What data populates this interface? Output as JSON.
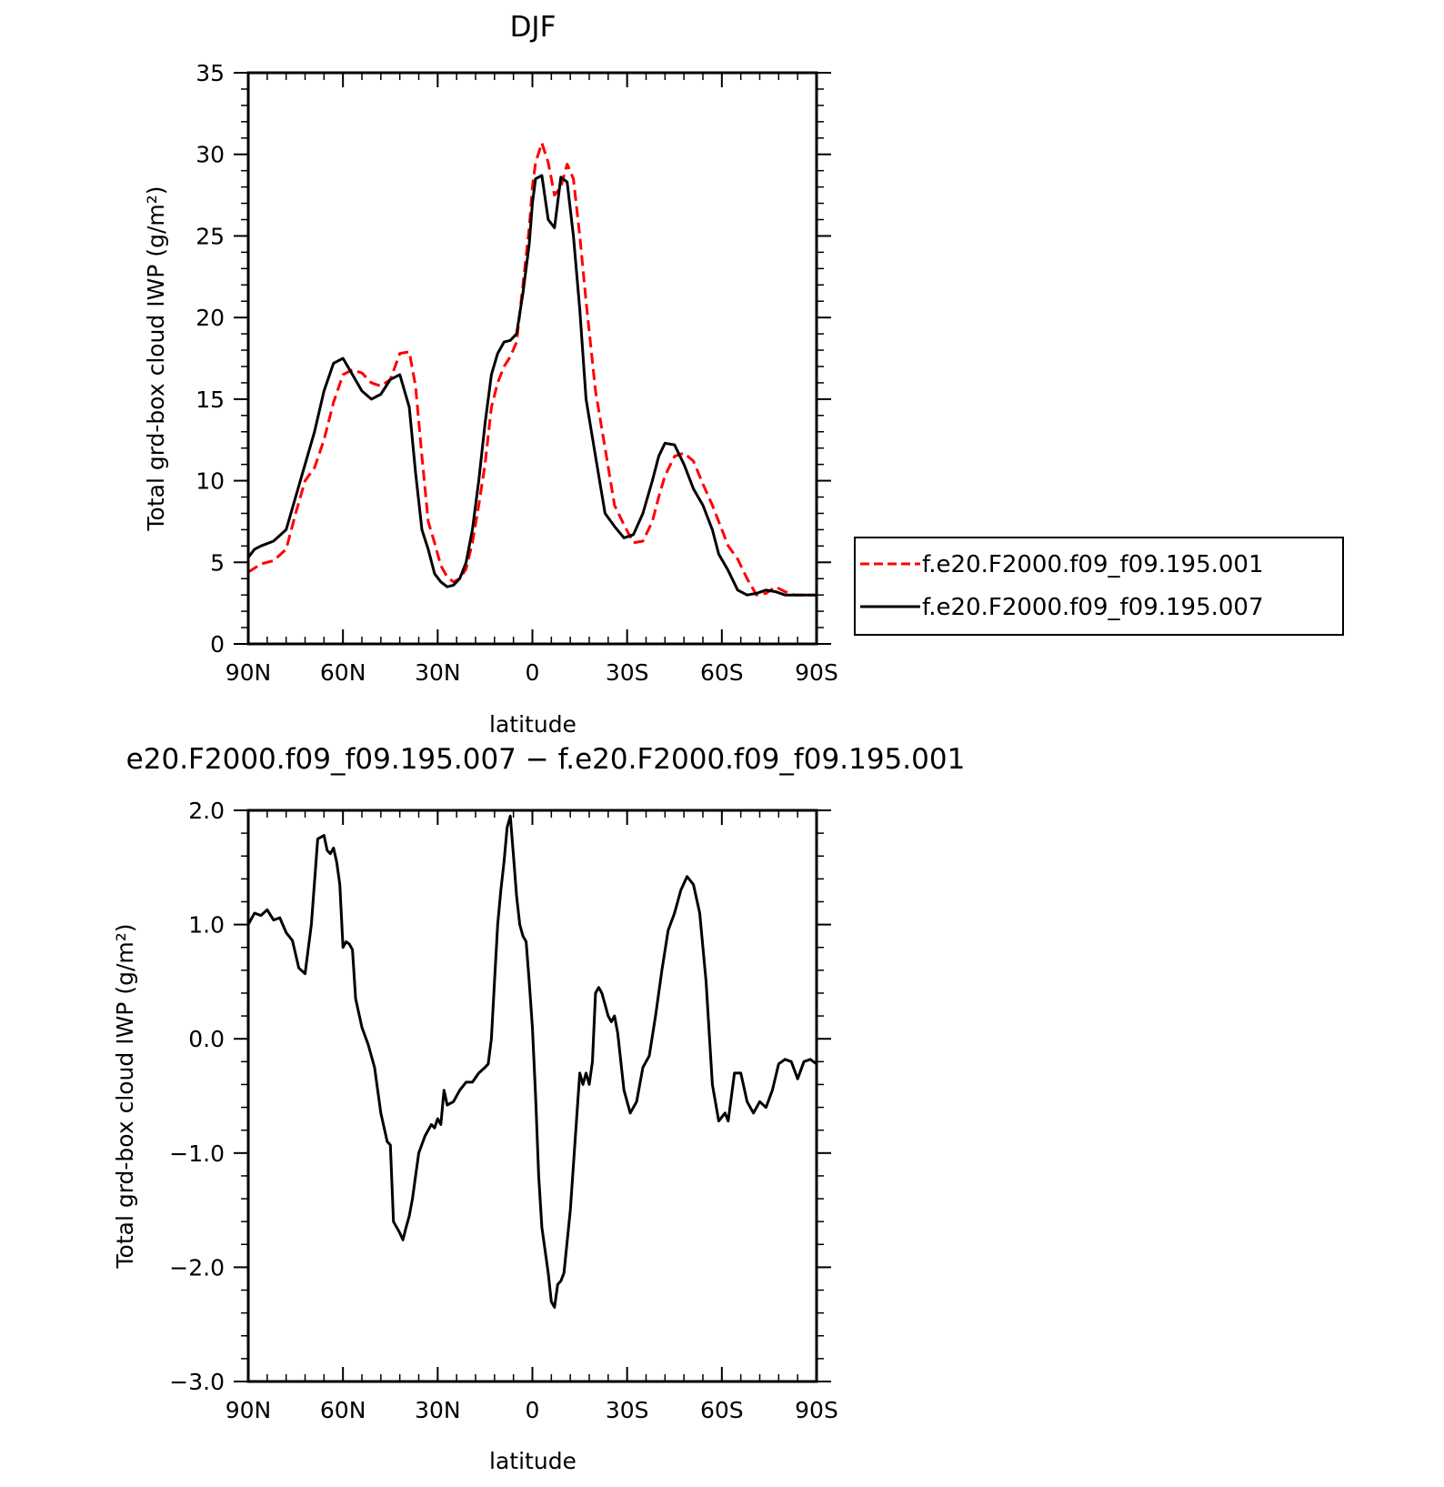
{
  "chart_data": [
    {
      "type": "line",
      "title": "DJF",
      "xlabel": "latitude",
      "ylabel": "Total grd-box cloud IWP (g/m²)",
      "xlim": [
        90,
        -90
      ],
      "ylim": [
        0,
        35
      ],
      "x_ticks": [
        90,
        60,
        30,
        0,
        -30,
        -60,
        -90
      ],
      "x_tick_labels": [
        "90N",
        "60N",
        "30N",
        "0",
        "30S",
        "60S",
        "90S"
      ],
      "y_ticks": [
        0,
        5,
        10,
        15,
        20,
        25,
        30,
        35
      ],
      "y_tick_labels": [
        "0",
        "5",
        "10",
        "15",
        "20",
        "25",
        "30",
        "35"
      ],
      "legend_position": "right",
      "series": [
        {
          "name": "f.e20.F2000.f09_f09.195.001",
          "color": "#ff0000",
          "dash": "dashed",
          "x": [
            90,
            86,
            82,
            78,
            75,
            72,
            69,
            66,
            63,
            60,
            57,
            54,
            51,
            48,
            45,
            42,
            39,
            37,
            35,
            33,
            31,
            29,
            27,
            25,
            23,
            21,
            19,
            17,
            15,
            13,
            11,
            9,
            7,
            5,
            3,
            1,
            0,
            -1,
            -3,
            -5,
            -7,
            -9,
            -11,
            -13,
            -15,
            -17,
            -20,
            -23,
            -26,
            -29,
            -32,
            -35,
            -38,
            -40,
            -42,
            -45,
            -48,
            -51,
            -54,
            -57,
            -59,
            -62,
            -65,
            -68,
            -71,
            -74,
            -77,
            -80,
            -83,
            -86,
            -88,
            -90
          ],
          "y": [
            4.4,
            4.9,
            5.1,
            5.8,
            8.0,
            10.0,
            10.8,
            12.5,
            14.8,
            16.5,
            16.8,
            16.6,
            16.0,
            15.8,
            16.2,
            17.8,
            17.9,
            15.8,
            11.5,
            7.5,
            6.2,
            4.8,
            4.1,
            3.8,
            4.0,
            4.6,
            6.2,
            8.5,
            11.0,
            14.5,
            16.0,
            17.0,
            17.6,
            18.5,
            22.0,
            25.5,
            28.0,
            29.5,
            30.7,
            29.5,
            27.5,
            28.0,
            29.4,
            28.5,
            25.0,
            21.0,
            15.5,
            12.0,
            8.5,
            7.3,
            6.2,
            6.3,
            7.5,
            9.0,
            10.3,
            11.5,
            11.7,
            11.2,
            9.8,
            8.5,
            7.5,
            6.0,
            5.2,
            4.0,
            3.0,
            3.1,
            3.5,
            3.2,
            3.0,
            3.0,
            3.0,
            3.0
          ]
        },
        {
          "name": "f.e20.F2000.f09_f09.195.007",
          "color": "#000000",
          "dash": "solid",
          "x": [
            90,
            88,
            86,
            82,
            78,
            75,
            72,
            69,
            66,
            63,
            60,
            57,
            54,
            51,
            48,
            45,
            42,
            39,
            37,
            35,
            33,
            31,
            29,
            27,
            25,
            23,
            21,
            19,
            17,
            15,
            13,
            11,
            9,
            7,
            5,
            3,
            1,
            0,
            -1,
            -3,
            -5,
            -7,
            -9,
            -11,
            -13,
            -15,
            -17,
            -20,
            -23,
            -26,
            -29,
            -32,
            -35,
            -38,
            -40,
            -42,
            -45,
            -48,
            -51,
            -54,
            -57,
            -59,
            -62,
            -65,
            -68,
            -71,
            -74,
            -77,
            -80,
            -83,
            -86,
            -88,
            -90
          ],
          "y": [
            5.3,
            5.8,
            6.0,
            6.3,
            7.0,
            9.0,
            11.0,
            13.0,
            15.5,
            17.2,
            17.5,
            16.5,
            15.5,
            15.0,
            15.3,
            16.2,
            16.5,
            14.5,
            10.5,
            7.0,
            5.8,
            4.3,
            3.8,
            3.5,
            3.6,
            4.0,
            5.0,
            7.0,
            10.0,
            13.5,
            16.5,
            17.8,
            18.5,
            18.6,
            19.0,
            21.5,
            24.5,
            27.0,
            28.5,
            28.7,
            26.0,
            25.5,
            28.6,
            28.3,
            25.0,
            20.5,
            15.0,
            11.5,
            8.0,
            7.2,
            6.5,
            6.7,
            8.0,
            10.0,
            11.5,
            12.3,
            12.2,
            11.0,
            9.5,
            8.5,
            7.0,
            5.5,
            4.5,
            3.3,
            3.0,
            3.1,
            3.3,
            3.2,
            3.0,
            3.0,
            3.0,
            3.0,
            3.0
          ]
        }
      ]
    },
    {
      "type": "line",
      "title": "e20.F2000.f09_f09.195.007 − f.e20.F2000.f09_f09.195.001",
      "xlabel": "latitude",
      "ylabel": "Total grd-box cloud IWP (g/m²)",
      "xlim": [
        90,
        -90
      ],
      "ylim": [
        -3.0,
        2.0
      ],
      "x_ticks": [
        90,
        60,
        30,
        0,
        -30,
        -60,
        -90
      ],
      "x_tick_labels": [
        "90N",
        "60N",
        "30N",
        "0",
        "30S",
        "60S",
        "90S"
      ],
      "y_ticks": [
        -3,
        -2,
        -1,
        0,
        1,
        2
      ],
      "y_tick_labels": [
        "−3.0",
        "−2.0",
        "−1.0",
        "0.0",
        "1.0",
        "2.0"
      ],
      "series": [
        {
          "color": "#000000",
          "dash": "solid",
          "x": [
            90,
            88,
            86,
            84,
            82,
            80,
            78,
            76,
            74,
            72,
            70,
            68,
            66,
            65,
            64,
            63,
            62,
            61,
            60,
            59,
            58,
            57,
            56,
            54,
            52,
            50,
            48,
            46,
            45,
            44,
            42,
            41,
            40,
            39,
            38,
            36,
            34,
            32,
            31,
            30,
            29,
            28,
            27,
            25,
            23,
            21,
            19,
            17,
            15,
            14,
            13,
            12,
            11,
            10,
            9,
            8,
            7,
            6,
            5,
            4,
            3,
            2,
            1,
            0,
            -1,
            -2,
            -3,
            -4,
            -5,
            -6,
            -7,
            -8,
            -9,
            -10,
            -12,
            -14,
            -15,
            -16,
            -17,
            -18,
            -19,
            -20,
            -21,
            -22,
            -23,
            -24,
            -25,
            -26,
            -27,
            -29,
            -31,
            -33,
            -35,
            -37,
            -39,
            -41,
            -43,
            -45,
            -47,
            -49,
            -51,
            -53,
            -55,
            -57,
            -59,
            -61,
            -62,
            -64,
            -66,
            -68,
            -70,
            -72,
            -74,
            -76,
            -78,
            -80,
            -82,
            -84,
            -86,
            -88,
            -90
          ],
          "y": [
            1.0,
            1.1,
            1.08,
            1.13,
            1.04,
            1.06,
            0.93,
            0.86,
            0.62,
            0.57,
            1.0,
            1.75,
            1.78,
            1.65,
            1.62,
            1.67,
            1.55,
            1.35,
            0.8,
            0.85,
            0.83,
            0.78,
            0.35,
            0.1,
            -0.05,
            -0.25,
            -0.65,
            -0.9,
            -0.93,
            -1.6,
            -1.7,
            -1.76,
            -1.65,
            -1.55,
            -1.4,
            -1.0,
            -0.85,
            -0.75,
            -0.78,
            -0.7,
            -0.75,
            -0.45,
            -0.58,
            -0.55,
            -0.45,
            -0.38,
            -0.38,
            -0.3,
            -0.25,
            -0.22,
            0.0,
            0.5,
            1.0,
            1.3,
            1.55,
            1.85,
            1.95,
            1.6,
            1.25,
            1.0,
            0.9,
            0.85,
            0.5,
            0.1,
            -0.5,
            -1.2,
            -1.65,
            -1.85,
            -2.05,
            -2.3,
            -2.35,
            -2.15,
            -2.12,
            -2.05,
            -1.5,
            -0.7,
            -0.3,
            -0.4,
            -0.3,
            -0.4,
            -0.2,
            0.4,
            0.45,
            0.4,
            0.3,
            0.2,
            0.15,
            0.2,
            0.05,
            -0.45,
            -0.65,
            -0.55,
            -0.25,
            -0.15,
            0.2,
            0.6,
            0.95,
            1.1,
            1.3,
            1.42,
            1.35,
            1.1,
            0.5,
            -0.4,
            -0.72,
            -0.65,
            -0.72,
            -0.3,
            -0.3,
            -0.55,
            -0.65,
            -0.55,
            -0.6,
            -0.45,
            -0.22,
            -0.18,
            -0.2,
            -0.35,
            -0.2,
            -0.18,
            -0.22
          ]
        }
      ]
    }
  ]
}
